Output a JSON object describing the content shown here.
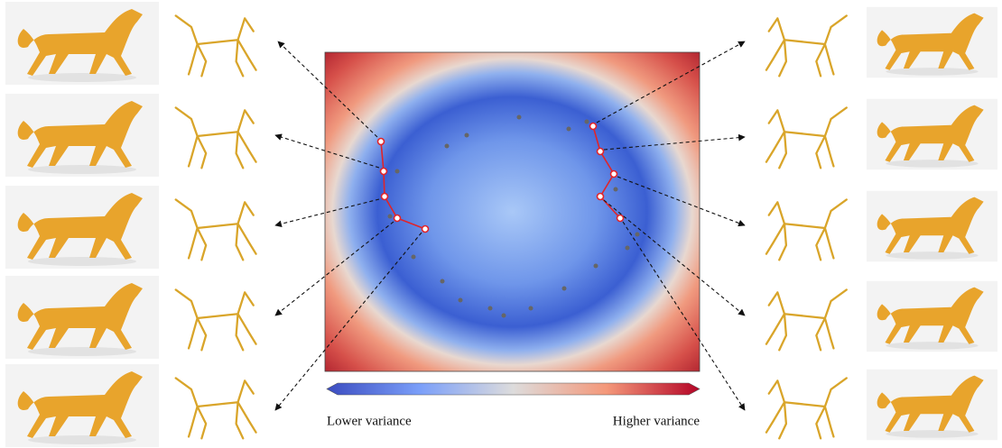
{
  "colorbar": {
    "low_label": "Lower variance",
    "high_label": "Higher variance"
  }
}
